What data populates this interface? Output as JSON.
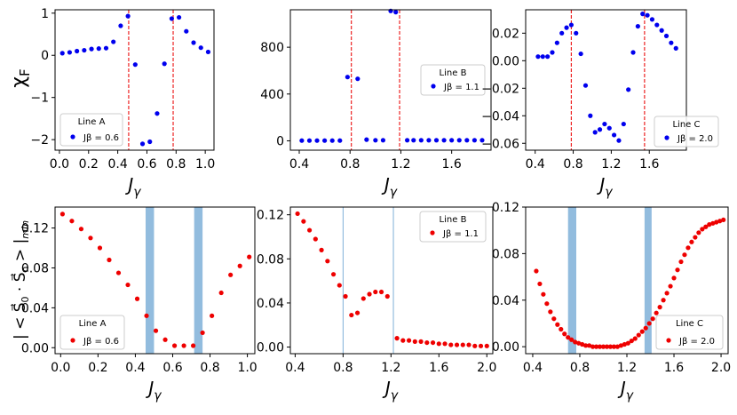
{
  "figure": {
    "y_label_top": "χF",
    "y_label_bottom": "| < S⃗0 · S⃗n > |min"
  },
  "chart_data": [
    {
      "type": "scatter",
      "panel": "top-left",
      "xlim": [
        -0.03,
        1.06
      ],
      "ylim": [
        -2.25,
        1.08
      ],
      "xticks": [
        0.0,
        0.2,
        0.4,
        0.6,
        0.8,
        1.0
      ],
      "xtick_labels": [
        "0.0",
        "0.2",
        "0.4",
        "0.6",
        "0.8",
        "1.0"
      ],
      "yticks": [
        -2,
        -1,
        0,
        1
      ],
      "ytick_labels": [
        "−2",
        "−1",
        "0",
        "1"
      ],
      "xlabel": "Jγ",
      "ylabel": "χF",
      "marker_color": "#0000ee",
      "legend": {
        "title": "Line A",
        "label": "Jβ = 0.6",
        "position": "bottom-left"
      },
      "vlines": [
        0.475,
        0.78
      ],
      "vline_color": "#ee2222",
      "x": [
        0.02,
        0.07,
        0.12,
        0.17,
        0.22,
        0.27,
        0.32,
        0.37,
        0.42,
        0.47,
        0.52,
        0.57,
        0.62,
        0.67,
        0.72,
        0.77,
        0.82,
        0.87,
        0.92,
        0.97,
        1.02
      ],
      "y": [
        0.05,
        0.07,
        0.1,
        0.12,
        0.15,
        0.16,
        0.17,
        0.32,
        0.7,
        0.93,
        -0.22,
        -2.1,
        -2.05,
        -1.38,
        -0.2,
        0.87,
        0.9,
        0.57,
        0.3,
        0.18,
        0.08
      ]
    },
    {
      "type": "scatter",
      "panel": "top-middle",
      "xlim": [
        0.33,
        1.91
      ],
      "ylim": [
        -80,
        1120
      ],
      "xticks": [
        0.4,
        0.8,
        1.2,
        1.6
      ],
      "xtick_labels": [
        "0.4",
        "0.8",
        "1.2",
        "1.6"
      ],
      "yticks": [
        0,
        400,
        800
      ],
      "ytick_labels": [
        "0",
        "400",
        "800"
      ],
      "xlabel": "Jγ",
      "marker_color": "#0000ee",
      "legend": {
        "title": "Line B",
        "label": "Jβ = 1.1",
        "position": "center-right"
      },
      "vlines": [
        0.81,
        1.19
      ],
      "vline_color": "#ee2222",
      "x": [
        0.42,
        0.48,
        0.54,
        0.6,
        0.66,
        0.72,
        0.78,
        0.86,
        0.93,
        1.0,
        1.06,
        1.12,
        1.16,
        1.25,
        1.3,
        1.36,
        1.42,
        1.48,
        1.54,
        1.6,
        1.66,
        1.72,
        1.78,
        1.84
      ],
      "y": [
        2,
        2,
        2,
        2,
        2,
        2,
        545,
        530,
        10,
        5,
        5,
        1110,
        1100,
        5,
        5,
        5,
        5,
        5,
        5,
        5,
        5,
        5,
        5,
        5
      ]
    },
    {
      "type": "scatter",
      "panel": "top-right",
      "xlim": [
        0.3,
        1.99
      ],
      "ylim": [
        -0.065,
        0.037
      ],
      "xticks": [
        0.4,
        0.8,
        1.2,
        1.6
      ],
      "xtick_labels": [
        "0.4",
        "0.8",
        "1.2",
        "1.6"
      ],
      "yticks": [
        -0.06,
        -0.04,
        -0.02,
        0.0,
        0.02
      ],
      "ytick_labels": [
        "−0.06",
        "−0.04",
        "−0.02",
        "0.00",
        "0.02"
      ],
      "xlabel": "Jγ",
      "marker_color": "#0000ee",
      "legend": {
        "title": "Line C",
        "label": "Jβ = 2.0",
        "position": "bottom-right"
      },
      "vlines": [
        0.78,
        1.55
      ],
      "vline_color": "#ee2222",
      "x": [
        0.43,
        0.48,
        0.53,
        0.58,
        0.63,
        0.68,
        0.73,
        0.78,
        0.83,
        0.88,
        0.93,
        0.98,
        1.03,
        1.08,
        1.13,
        1.18,
        1.23,
        1.28,
        1.33,
        1.38,
        1.43,
        1.48,
        1.53,
        1.58,
        1.63,
        1.68,
        1.73,
        1.78,
        1.83,
        1.88
      ],
      "y": [
        0.003,
        0.003,
        0.003,
        0.006,
        0.013,
        0.02,
        0.024,
        0.026,
        0.02,
        0.005,
        -0.018,
        -0.04,
        -0.052,
        -0.05,
        -0.046,
        -0.049,
        -0.054,
        -0.058,
        -0.046,
        -0.021,
        0.006,
        0.025,
        0.034,
        0.033,
        0.03,
        0.026,
        0.022,
        0.018,
        0.013,
        0.009
      ]
    },
    {
      "type": "scatter",
      "panel": "bottom-left",
      "xlim": [
        -0.03,
        1.04
      ],
      "ylim": [
        -0.006,
        0.141
      ],
      "xticks": [
        0.0,
        0.2,
        0.4,
        0.6,
        0.8,
        1.0
      ],
      "xtick_labels": [
        "0.0",
        "0.2",
        "0.4",
        "0.6",
        "0.8",
        "1.0"
      ],
      "yticks": [
        0.0,
        0.04,
        0.08,
        0.12
      ],
      "ytick_labels": [
        "0.00",
        "0.04",
        "0.08",
        "0.12"
      ],
      "xlabel": "Jγ",
      "ylabel": "| < S⃗0 · S⃗n > |min",
      "marker_color": "#ee0000",
      "legend": {
        "title": "Line A",
        "label": "Jβ = 0.6",
        "position": "bottom-left"
      },
      "bands": [
        [
          0.455,
          0.5
        ],
        [
          0.715,
          0.76
        ]
      ],
      "band_color": "#7fb0d8",
      "x": [
        0.01,
        0.06,
        0.11,
        0.16,
        0.21,
        0.26,
        0.31,
        0.36,
        0.41,
        0.46,
        0.51,
        0.56,
        0.61,
        0.66,
        0.71,
        0.76,
        0.81,
        0.86,
        0.91,
        0.96,
        1.01
      ],
      "y": [
        0.134,
        0.127,
        0.119,
        0.11,
        0.1,
        0.088,
        0.075,
        0.063,
        0.049,
        0.032,
        0.017,
        0.008,
        0.002,
        0.002,
        0.002,
        0.015,
        0.032,
        0.055,
        0.073,
        0.082,
        0.091
      ]
    },
    {
      "type": "scatter",
      "panel": "bottom-middle",
      "xlim": [
        0.36,
        2.05
      ],
      "ylim": [
        -0.006,
        0.127
      ],
      "xticks": [
        0.4,
        0.8,
        1.2,
        1.6,
        2.0
      ],
      "xtick_labels": [
        "0.4",
        "0.8",
        "1.2",
        "1.6",
        "2.0"
      ],
      "yticks": [
        0.0,
        0.04,
        0.08,
        0.12
      ],
      "ytick_labels": [
        "0.00",
        "0.04",
        "0.08",
        "0.12"
      ],
      "xlabel": "Jγ",
      "marker_color": "#ee0000",
      "legend": {
        "title": "Line B",
        "label": "Jβ = 1.1",
        "position": "top-right"
      },
      "vlines": [
        0.8,
        1.22
      ],
      "vline_color": "#7fb0d8",
      "x": [
        0.42,
        0.47,
        0.52,
        0.57,
        0.62,
        0.67,
        0.72,
        0.77,
        0.82,
        0.87,
        0.92,
        0.97,
        1.02,
        1.07,
        1.12,
        1.17,
        1.25,
        1.3,
        1.35,
        1.4,
        1.45,
        1.5,
        1.55,
        1.6,
        1.65,
        1.7,
        1.75,
        1.8,
        1.85,
        1.9,
        1.95,
        2.0
      ],
      "y": [
        0.121,
        0.114,
        0.106,
        0.098,
        0.088,
        0.078,
        0.066,
        0.056,
        0.046,
        0.029,
        0.031,
        0.044,
        0.048,
        0.05,
        0.05,
        0.046,
        0.008,
        0.006,
        0.006,
        0.005,
        0.005,
        0.004,
        0.004,
        0.003,
        0.003,
        0.002,
        0.002,
        0.002,
        0.002,
        0.001,
        0.001,
        0.001
      ]
    },
    {
      "type": "scatter",
      "panel": "bottom-right",
      "xlim": [
        0.34,
        2.06
      ],
      "ylim": [
        -0.006,
        0.12
      ],
      "xticks": [
        0.4,
        0.8,
        1.2,
        1.6,
        2.0
      ],
      "xtick_labels": [
        "0.4",
        "0.8",
        "1.2",
        "1.6",
        "2.0"
      ],
      "yticks": [
        0.0,
        0.04,
        0.08,
        0.12
      ],
      "ytick_labels": [
        "0.00",
        "0.04",
        "0.08",
        "0.12"
      ],
      "xlabel": "Jγ",
      "marker_color": "#ee0000",
      "legend": {
        "title": "Line C",
        "label": "Jβ = 2.0",
        "position": "bottom-right"
      },
      "bands": [
        [
          0.7,
          0.77
        ],
        [
          1.35,
          1.41
        ]
      ],
      "band_color": "#7fb0d8",
      "x": [
        0.43,
        0.46,
        0.49,
        0.52,
        0.55,
        0.58,
        0.61,
        0.64,
        0.67,
        0.7,
        0.73,
        0.76,
        0.79,
        0.82,
        0.85,
        0.88,
        0.91,
        0.94,
        0.97,
        1.0,
        1.03,
        1.06,
        1.09,
        1.12,
        1.15,
        1.18,
        1.21,
        1.24,
        1.27,
        1.3,
        1.33,
        1.36,
        1.39,
        1.42,
        1.45,
        1.48,
        1.51,
        1.54,
        1.57,
        1.6,
        1.63,
        1.66,
        1.69,
        1.72,
        1.75,
        1.78,
        1.81,
        1.84,
        1.87,
        1.9,
        1.93,
        1.96,
        1.99,
        2.02
      ],
      "y": [
        0.065,
        0.054,
        0.045,
        0.037,
        0.03,
        0.024,
        0.019,
        0.015,
        0.011,
        0.008,
        0.006,
        0.004,
        0.003,
        0.002,
        0.001,
        0.001,
        0.0,
        0.0,
        0.0,
        0.0,
        0.0,
        0.0,
        0.0,
        0.0,
        0.001,
        0.002,
        0.003,
        0.005,
        0.007,
        0.01,
        0.013,
        0.016,
        0.02,
        0.024,
        0.029,
        0.034,
        0.04,
        0.046,
        0.052,
        0.059,
        0.066,
        0.073,
        0.079,
        0.085,
        0.09,
        0.094,
        0.098,
        0.101,
        0.103,
        0.105,
        0.106,
        0.107,
        0.108,
        0.109
      ]
    }
  ]
}
